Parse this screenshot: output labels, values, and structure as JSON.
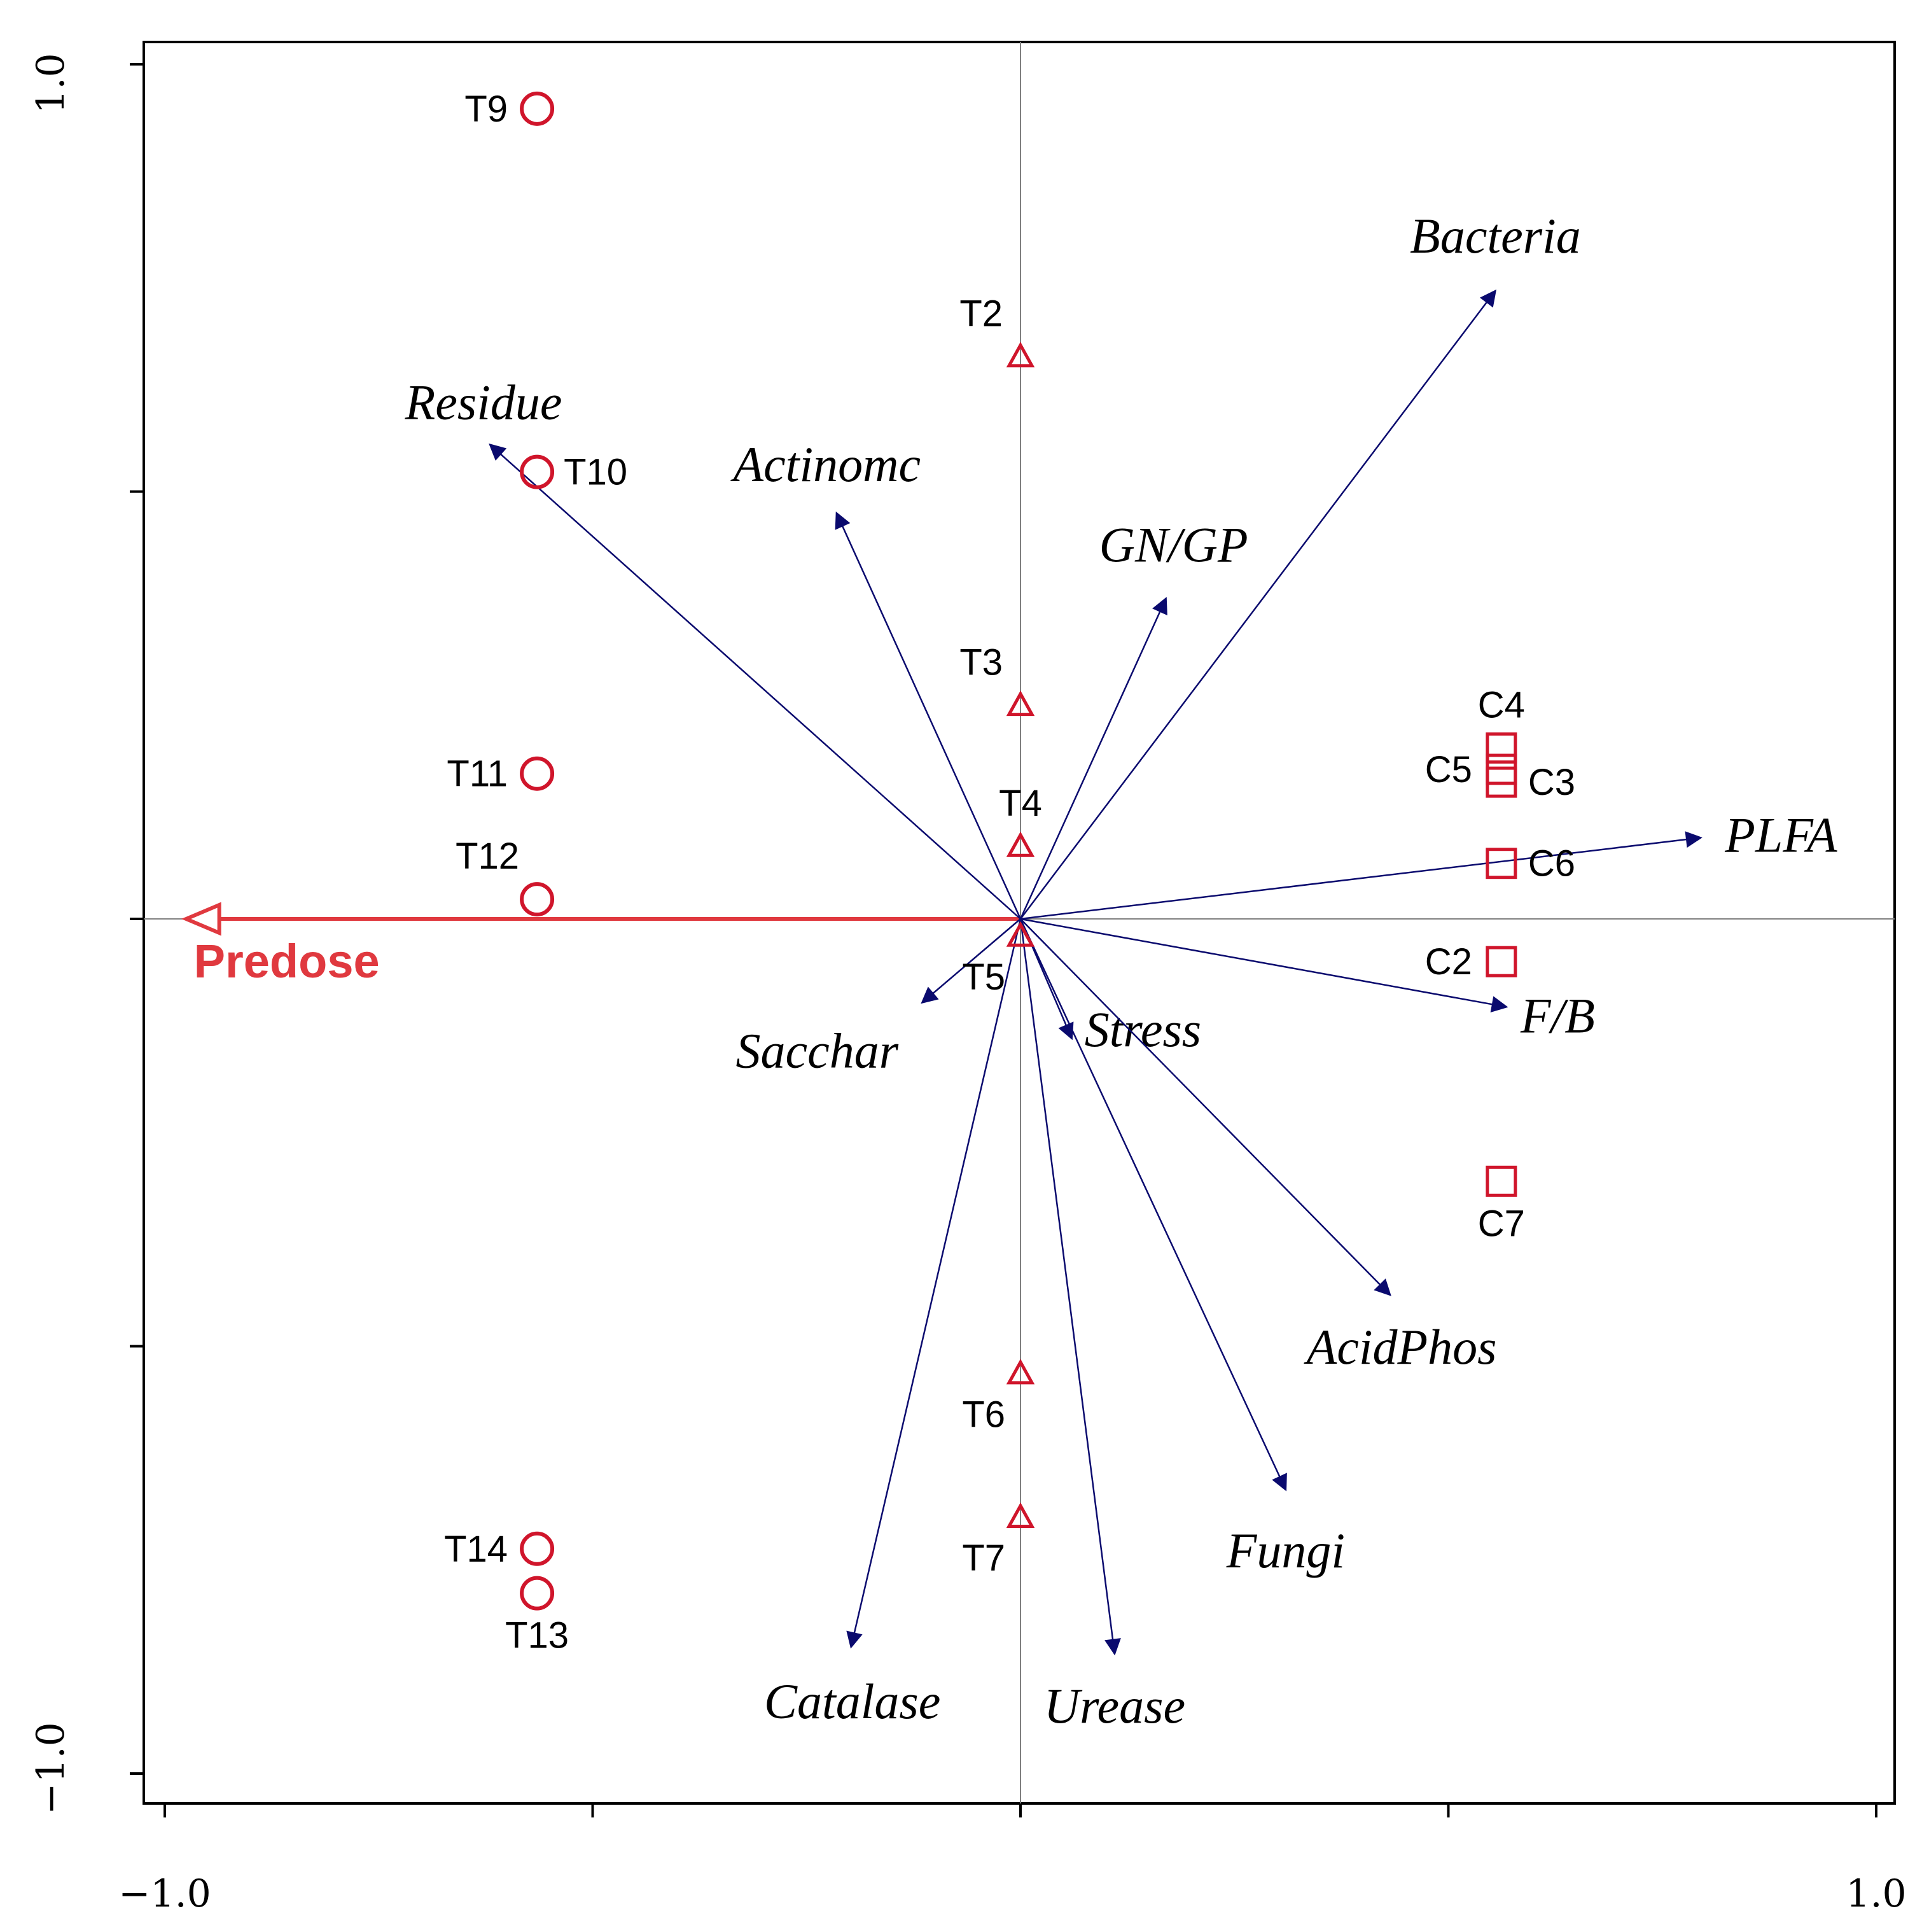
{
  "chart_data": {
    "type": "scatter",
    "subtype": "rda-biplot",
    "title": "",
    "xlabel": "",
    "ylabel": "",
    "xlim": [
      -1.0,
      1.0
    ],
    "ylim": [
      -1.0,
      1.0
    ],
    "x_tick_labels": [
      {
        "value": -1.0,
        "label": "−1.0"
      },
      {
        "value": 1.0,
        "label": "1.0"
      }
    ],
    "y_tick_labels": [
      {
        "value": 1.0,
        "label": "1.0"
      },
      {
        "value": -1.0,
        "label": "−1.0"
      }
    ],
    "x_ticks": [
      -1.0,
      -0.5,
      0.0,
      0.5,
      1.0
    ],
    "y_ticks": [
      -1.0,
      -0.5,
      0.0,
      0.5,
      1.0
    ],
    "grid": false,
    "colors": {
      "samples": "#d0152b",
      "arrows": "#0a0a6e",
      "environmental": "#e0393f",
      "axes": "#000000",
      "zero_lines": "#808080"
    },
    "samples": [
      {
        "name": "T9",
        "group": "circle",
        "x": -0.565,
        "y": 0.948,
        "label_pos": "left"
      },
      {
        "name": "T10",
        "group": "circle",
        "x": -0.565,
        "y": 0.523,
        "label_pos": "right"
      },
      {
        "name": "T11",
        "group": "circle",
        "x": -0.565,
        "y": 0.17,
        "label_pos": "left"
      },
      {
        "name": "T12",
        "group": "circle",
        "x": -0.565,
        "y": 0.023,
        "label_pos": "above-left"
      },
      {
        "name": "T14",
        "group": "circle",
        "x": -0.565,
        "y": -0.737,
        "label_pos": "left"
      },
      {
        "name": "T13",
        "group": "circle",
        "x": -0.565,
        "y": -0.789,
        "label_pos": "below"
      },
      {
        "name": "T2",
        "group": "triangle",
        "x": 0.0,
        "y": 0.658,
        "label_pos": "above-left"
      },
      {
        "name": "T3",
        "group": "triangle",
        "x": 0.0,
        "y": 0.25,
        "label_pos": "above-left"
      },
      {
        "name": "T4",
        "group": "triangle",
        "x": 0.0,
        "y": 0.085,
        "label_pos": "above"
      },
      {
        "name": "T5",
        "group": "triangle",
        "x": 0.0,
        "y": -0.02,
        "label_pos": "below-left"
      },
      {
        "name": "T6",
        "group": "triangle",
        "x": 0.0,
        "y": -0.532,
        "label_pos": "below-left"
      },
      {
        "name": "T7",
        "group": "triangle",
        "x": 0.0,
        "y": -0.7,
        "label_pos": "below-left"
      },
      {
        "name": "C4",
        "group": "square",
        "x": 0.562,
        "y": 0.2,
        "label_pos": "above"
      },
      {
        "name": "C5",
        "group": "square",
        "x": 0.562,
        "y": 0.175,
        "label_pos": "left"
      },
      {
        "name": "C3",
        "group": "square",
        "x": 0.562,
        "y": 0.16,
        "label_pos": "right"
      },
      {
        "name": "C6",
        "group": "square",
        "x": 0.562,
        "y": 0.065,
        "label_pos": "right"
      },
      {
        "name": "C2",
        "group": "square",
        "x": 0.562,
        "y": -0.05,
        "label_pos": "left"
      },
      {
        "name": "C7",
        "group": "square",
        "x": 0.562,
        "y": -0.307,
        "label_pos": "below"
      }
    ],
    "response_arrows": [
      {
        "name": "Bacteria",
        "x": 0.555,
        "y": 0.735
      },
      {
        "name": "Residue",
        "x": -0.62,
        "y": 0.555
      },
      {
        "name": "Actinomc",
        "x": -0.215,
        "y": 0.475
      },
      {
        "name": "GN/GP",
        "x": 0.17,
        "y": 0.375
      },
      {
        "name": "PLFA",
        "x": 0.795,
        "y": 0.095
      },
      {
        "name": "F/B",
        "x": 0.568,
        "y": -0.103
      },
      {
        "name": "Sacchar",
        "x": -0.115,
        "y": -0.098
      },
      {
        "name": "Stress",
        "x": 0.06,
        "y": -0.14
      },
      {
        "name": "AcidPhos",
        "x": 0.432,
        "y": -0.44
      },
      {
        "name": "Fungi",
        "x": 0.31,
        "y": -0.668
      },
      {
        "name": "Catalase",
        "x": -0.198,
        "y": -0.852
      },
      {
        "name": "Urease",
        "x": 0.11,
        "y": -0.86
      }
    ],
    "explanatory_variables": [
      {
        "name": "Predose",
        "x": -0.975,
        "y": 0.0
      }
    ]
  }
}
